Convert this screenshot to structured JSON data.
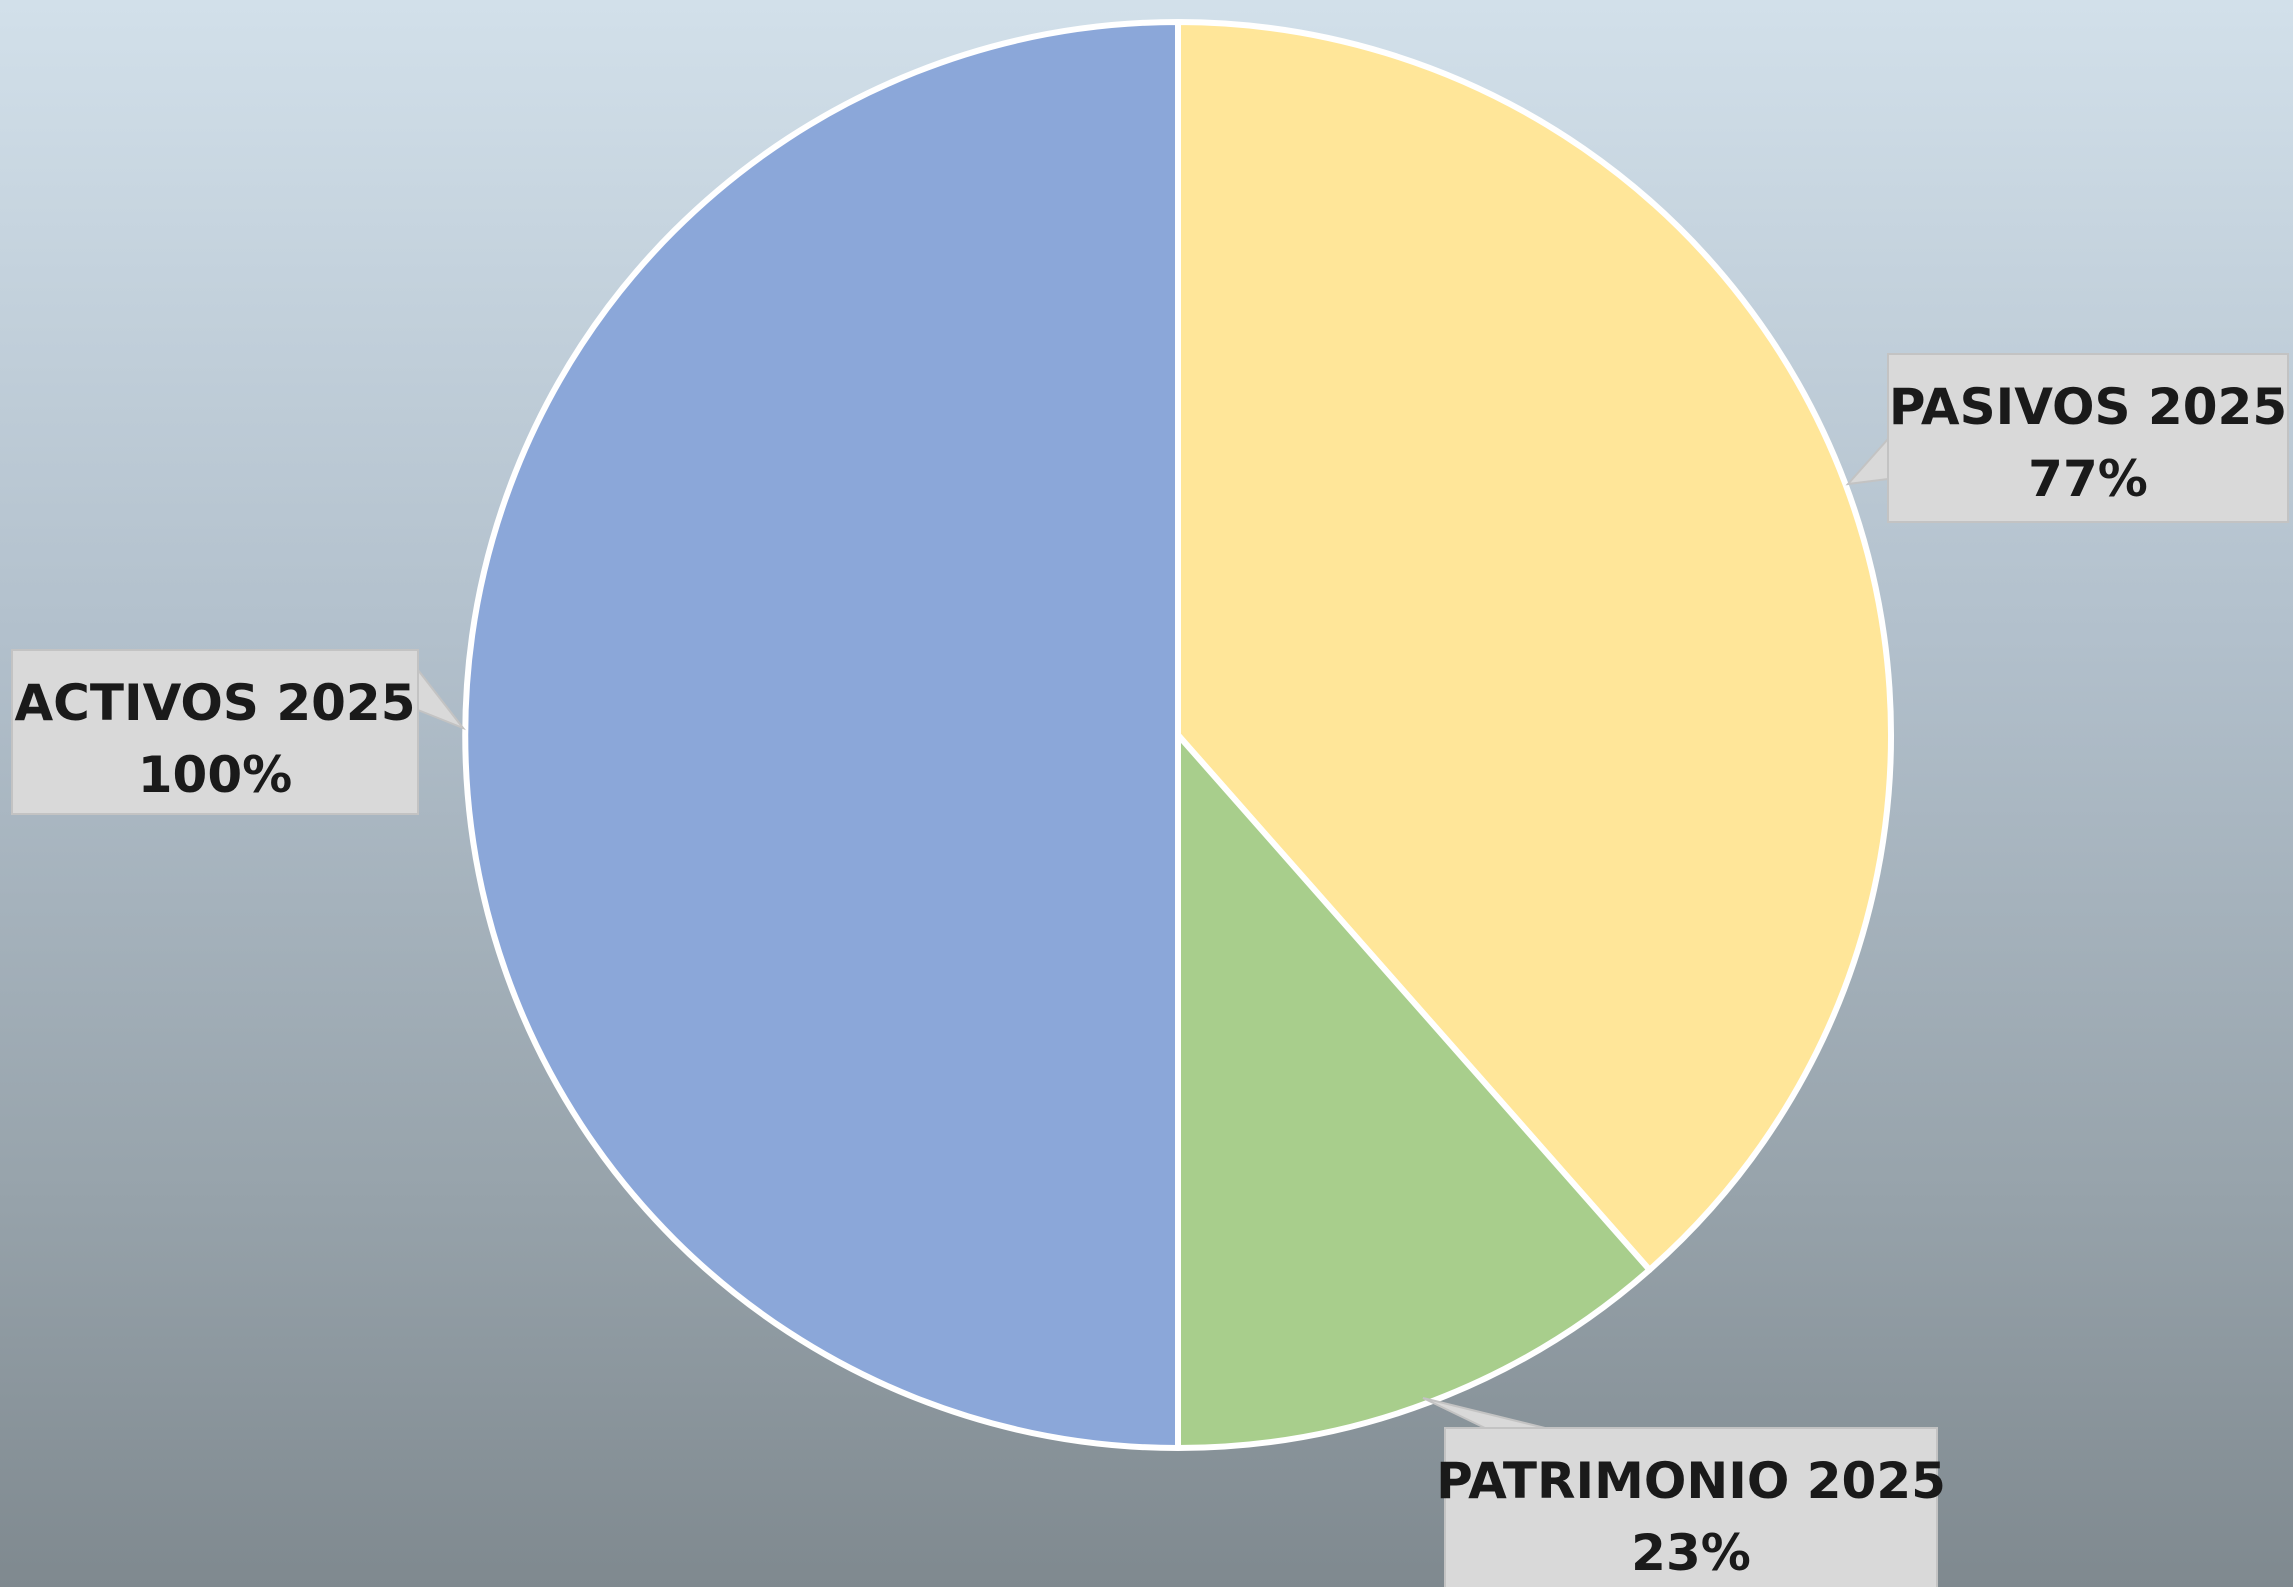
{
  "chart_data": {
    "type": "pie",
    "slices": [
      {
        "label": "ACTIVOS 2025",
        "value": 100,
        "display": "100%",
        "color": "#8ba7d9"
      },
      {
        "label": "PASIVOS 2025",
        "value": 77,
        "display": "77%",
        "color": "#ffe699"
      },
      {
        "label": "PATRIMONIO 2025",
        "value": 23,
        "display": "23%",
        "color": "#a8ce8c"
      }
    ],
    "legend": "none",
    "data_labels": "callout"
  }
}
